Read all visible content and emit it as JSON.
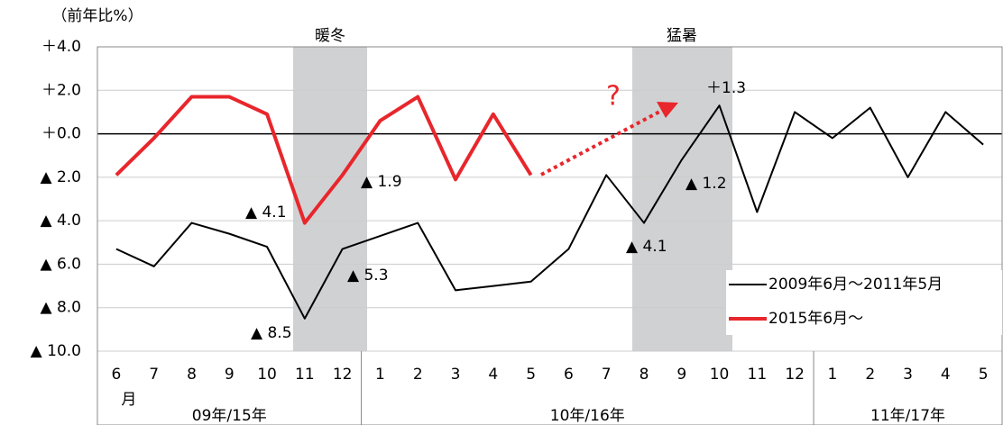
{
  "chart_data": {
    "type": "line",
    "y_axis_label": "（前年比%）",
    "categories": [
      "6",
      "7",
      "8",
      "9",
      "10",
      "11",
      "12",
      "1",
      "2",
      "3",
      "4",
      "5",
      "6",
      "7",
      "8",
      "9",
      "10",
      "11",
      "12",
      "1",
      "2",
      "3",
      "4",
      "5"
    ],
    "month_unit": "月",
    "year_groups": [
      "09年/15年",
      "10年/16年",
      "11年/17年"
    ],
    "series": [
      {
        "name": "2009年6月～2011年5月",
        "color": "#000000",
        "width": 2,
        "values": [
          -5.3,
          -6.1,
          -4.1,
          -4.6,
          -5.2,
          -8.5,
          -5.3,
          -4.7,
          -4.1,
          -7.2,
          -7.0,
          -6.8,
          -5.3,
          -1.9,
          -4.1,
          -1.2,
          1.3,
          -3.6,
          1.0,
          -0.2,
          1.2,
          -2.0,
          1.0,
          -0.5
        ]
      },
      {
        "name": "2015年6月～",
        "color": "#e8262c",
        "width": 4,
        "values": [
          -1.9,
          -0.2,
          1.7,
          1.7,
          0.9,
          -4.1,
          -1.9,
          0.6,
          1.7,
          -2.1,
          0.9,
          -1.9,
          null,
          null,
          null,
          null,
          null,
          null,
          null,
          null,
          null,
          null,
          null,
          null
        ]
      }
    ],
    "ylim": [
      -10,
      4
    ],
    "yticks": [
      {
        "value": -10,
        "label": "▲ 10.0"
      },
      {
        "value": -8,
        "label": "▲ 8.0"
      },
      {
        "value": -6,
        "label": "▲ 6.0"
      },
      {
        "value": -4,
        "label": "▲ 4.0"
      },
      {
        "value": -2,
        "label": "▲ 2.0"
      },
      {
        "value": 0,
        "label": "＋0.0"
      },
      {
        "value": 2,
        "label": "＋2.0"
      },
      {
        "value": 4,
        "label": "＋4.0"
      }
    ],
    "grid": true,
    "shaded_regions": [
      "暖冬",
      "猛暑"
    ],
    "annotations": [
      "▲ 4.1",
      "▲ 8.5",
      "▲ 1.9",
      "▲ 5.3",
      "＋1.3",
      "▲ 1.2",
      "▲ 4.1",
      "?"
    ]
  }
}
